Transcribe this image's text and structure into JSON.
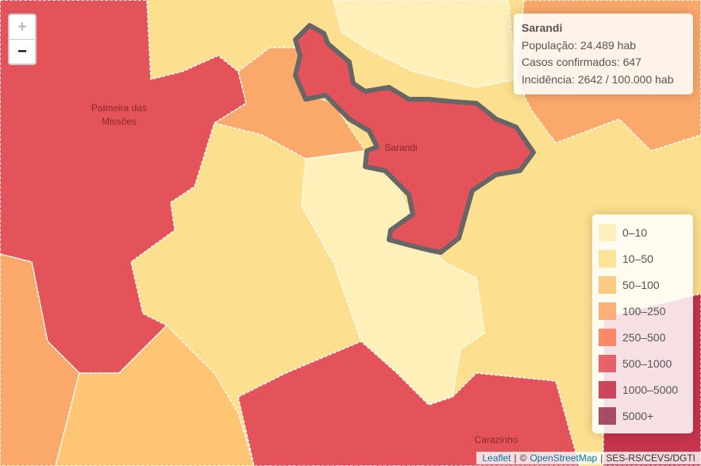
{
  "zoom": {
    "in": "+",
    "out": "−"
  },
  "map_labels": {
    "palmeira": [
      "Palmeira das",
      "Missões"
    ],
    "sarandi": "Sarandi",
    "carazinho": "Carazinho"
  },
  "info": {
    "title": "Sarandi",
    "lines": [
      "População: 24.489 hab",
      "Casos confirmados: 647",
      "Incidência: 2642 / 100.000 hab"
    ]
  },
  "legend": {
    "items": [
      {
        "label": "0–10",
        "color": "#fef0b8"
      },
      {
        "label": "10–50",
        "color": "#fde08f"
      },
      {
        "label": "50–100",
        "color": "#fdc574"
      },
      {
        "label": "100–250",
        "color": "#fba96b"
      },
      {
        "label": "250–500",
        "color": "#f6805a"
      },
      {
        "label": "500–1000",
        "color": "#e4535a"
      },
      {
        "label": "1000–5000",
        "color": "#c7344d"
      },
      {
        "label": "5000+",
        "color": "#9b3b58"
      }
    ]
  },
  "attribution": {
    "leaflet": "Leaflet",
    "separator": "|",
    "copyright": "©",
    "osm": "OpenStreetMap",
    "source": "SES-RS/CEVS/DGTI"
  }
}
